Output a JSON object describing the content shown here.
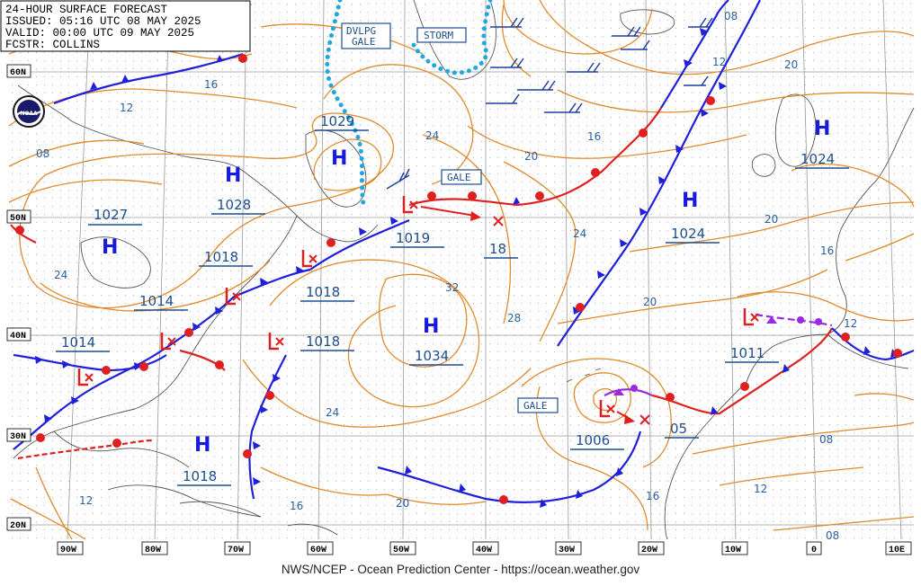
{
  "header": {
    "line1": "24-HOUR SURFACE FORECAST",
    "line2": "ISSUED: 05:16 UTC 08 MAY 2025",
    "line3": "VALID:  00:00 UTC 09 MAY 2025",
    "line4": "FCSTR:  COLLINS"
  },
  "footer": "NWS/NCEP - Ocean Prediction Center - https://ocean.weather.gov",
  "logo": "NOAA",
  "lat_labels": [
    "60N",
    "50N",
    "40N",
    "30N",
    "20N"
  ],
  "lon_labels": [
    "90W",
    "80W",
    "70W",
    "60W",
    "50W",
    "40W",
    "30W",
    "20W",
    "10W",
    "0",
    "10E"
  ],
  "highs": [
    {
      "name": "high-1028",
      "letter": "H",
      "value": "1028"
    },
    {
      "name": "high-1027",
      "letter": "H",
      "value": "1027"
    },
    {
      "name": "high-1029",
      "letter": "H",
      "value": "1029"
    },
    {
      "name": "high-1034",
      "letter": "H",
      "value": "1034"
    },
    {
      "name": "high-1024-mid",
      "letter": "H",
      "value": "1024"
    },
    {
      "name": "high-1024-east",
      "letter": "H",
      "value": "1024"
    },
    {
      "name": "high-1018-south",
      "letter": "H",
      "value": "1018"
    }
  ],
  "lows": [
    {
      "name": "low-1018-nova",
      "value": "1018"
    },
    {
      "name": "low-1019",
      "value": "1019"
    },
    {
      "name": "low-1014-ne",
      "value": "1014"
    },
    {
      "name": "low-1014-sw",
      "value": "1014"
    },
    {
      "name": "low-1018-atl",
      "value": "1018"
    },
    {
      "name": "low-1006",
      "value": "1006"
    },
    {
      "name": "low-1011",
      "value": "1011"
    }
  ],
  "forecast_positions": [
    {
      "name": "fcst-pos-18",
      "value": "18"
    },
    {
      "name": "fcst-pos-05",
      "value": "05"
    }
  ],
  "warnings": [
    "DVLPG",
    "GALE",
    "STORM",
    "GALE",
    "GALE"
  ],
  "isobar_labels": [
    "16",
    "12",
    "08",
    "24",
    "24",
    "20",
    "16",
    "08",
    "12",
    "20",
    "20",
    "16",
    "24",
    "32",
    "28",
    "20",
    "24",
    "16",
    "12",
    "08",
    "12",
    "08",
    "16",
    "20",
    "12"
  ]
}
